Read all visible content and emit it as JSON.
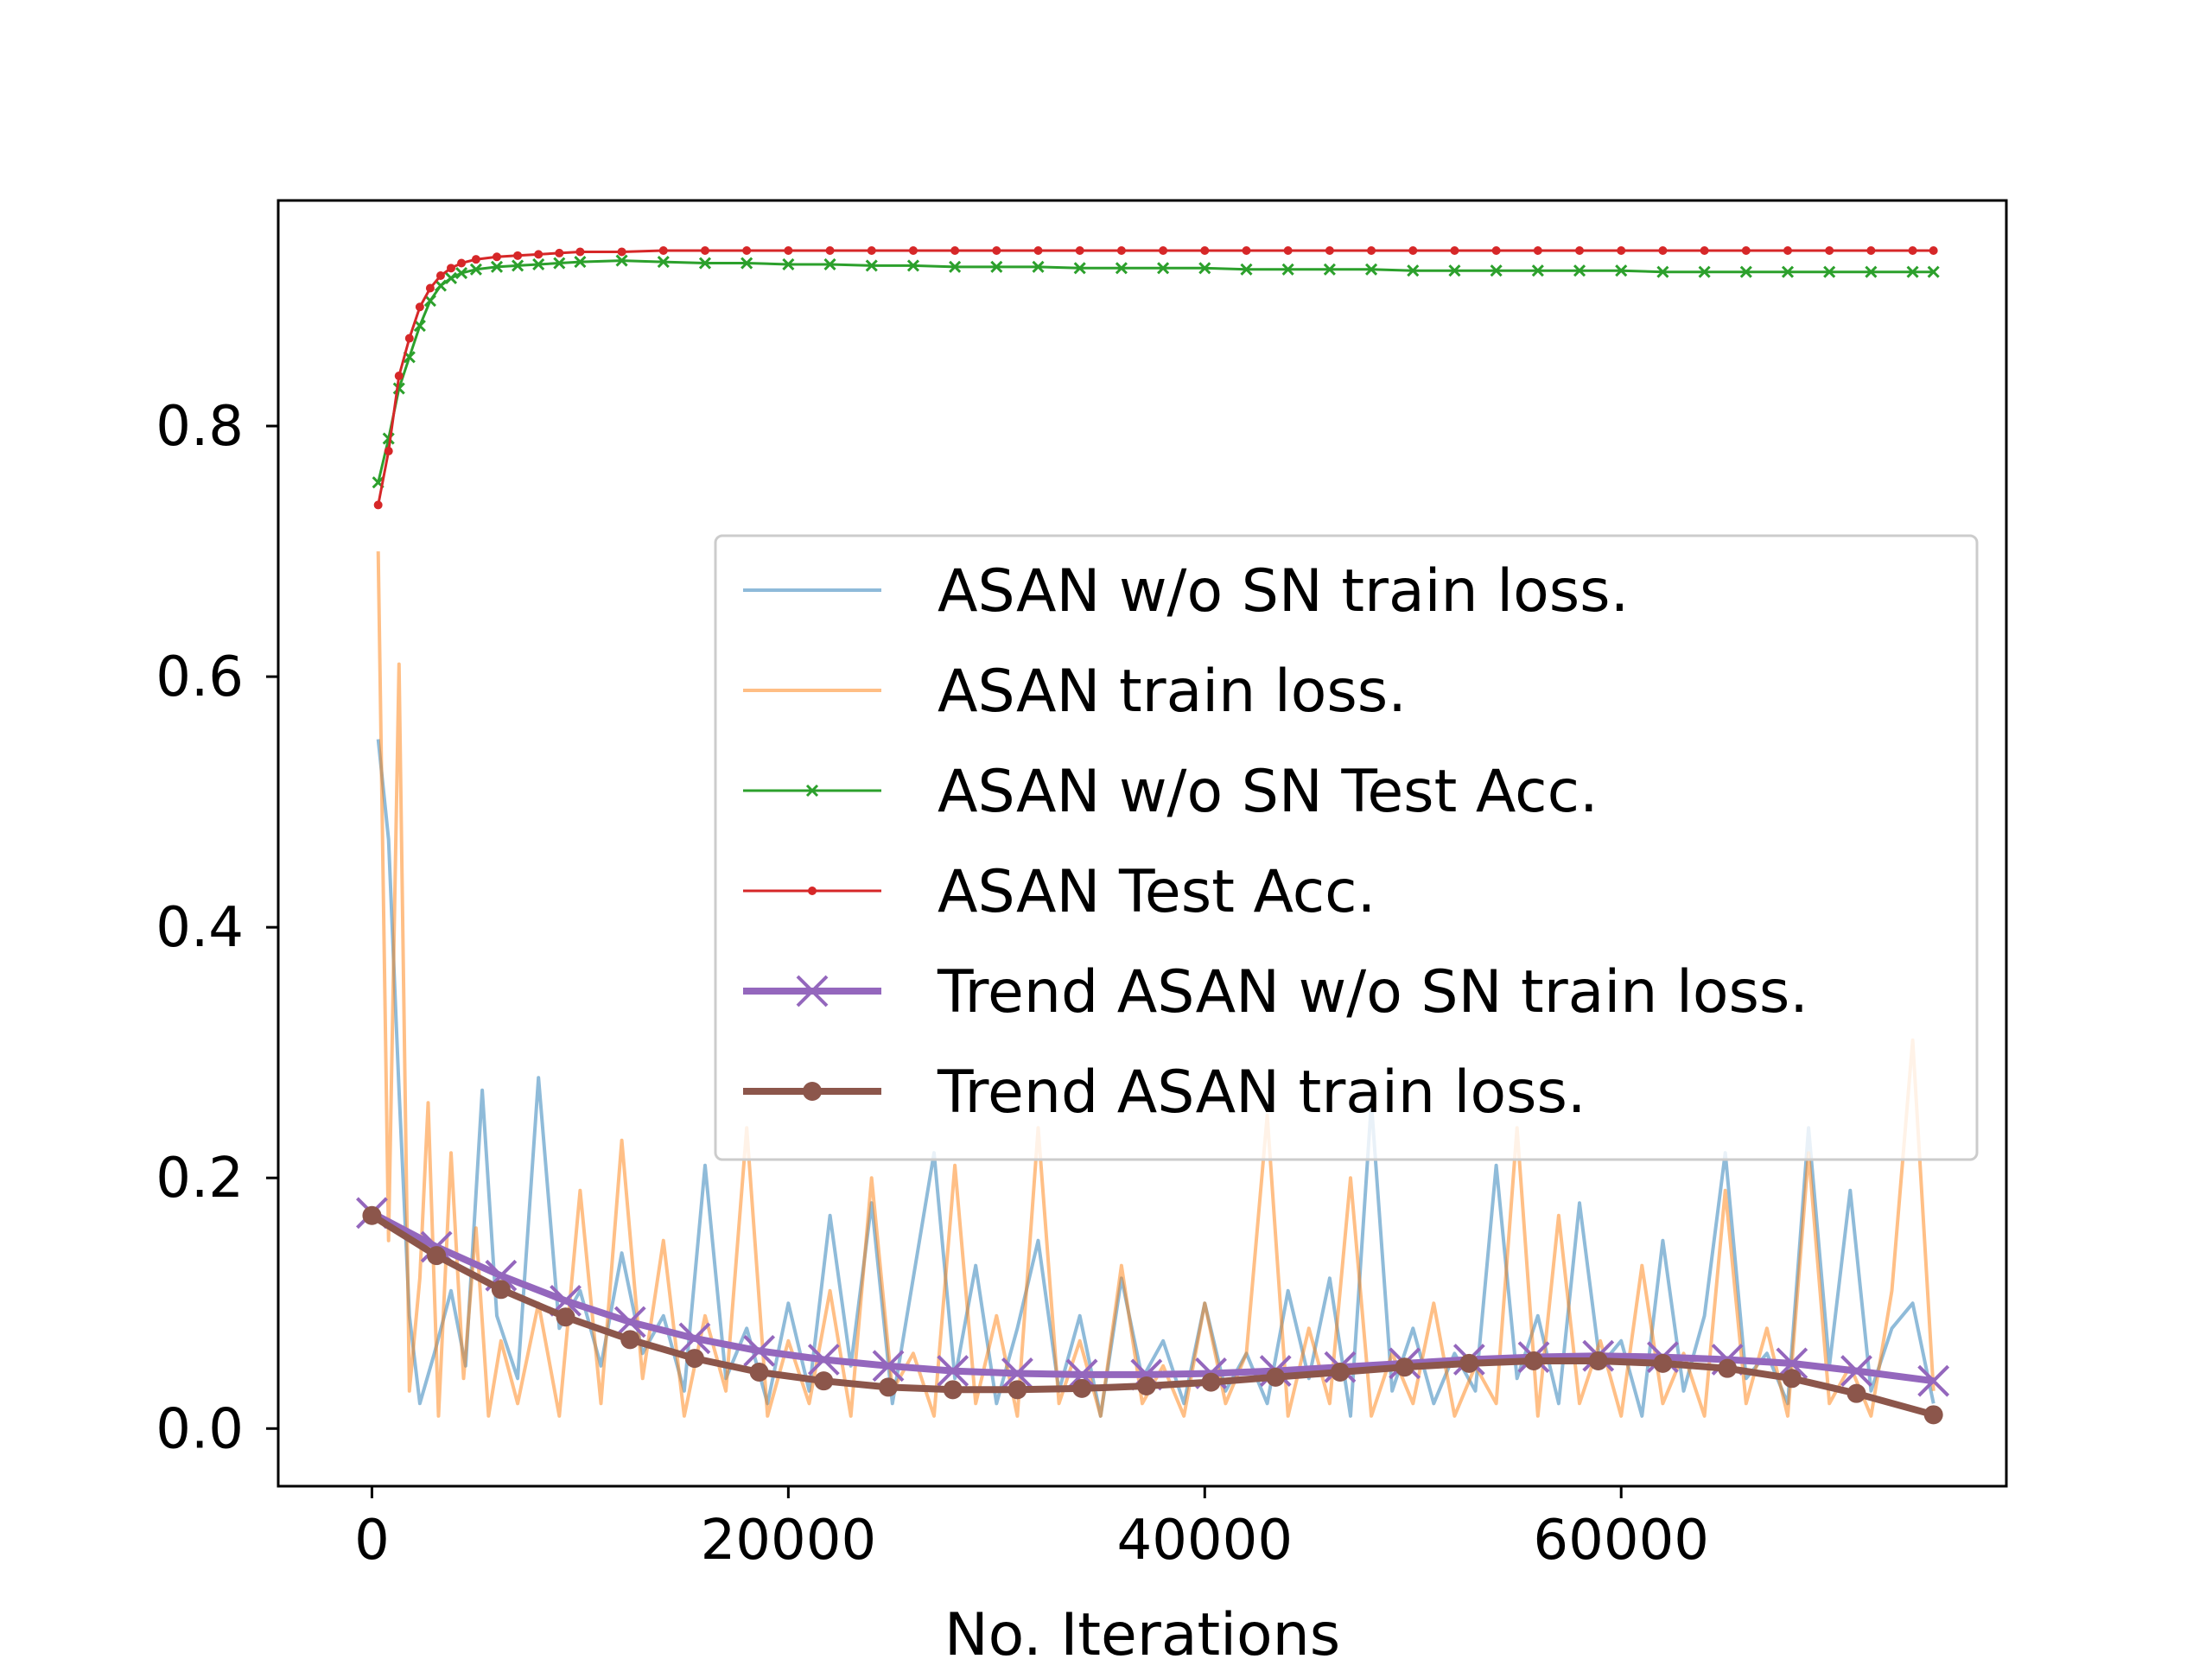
{
  "chart_data": {
    "type": "line",
    "title": "",
    "xlabel": "No. Iterations",
    "ylabel": "",
    "xlim": [
      -4500,
      78500
    ],
    "ylim": [
      -0.046,
      0.98
    ],
    "x_ticks": [
      {
        "value": 0,
        "label": "0"
      },
      {
        "value": 20000,
        "label": "20000"
      },
      {
        "value": 40000,
        "label": "40000"
      },
      {
        "value": 60000,
        "label": "60000"
      }
    ],
    "y_ticks": [
      {
        "value": 0.0,
        "label": "0.0"
      },
      {
        "value": 0.2,
        "label": "0.2"
      },
      {
        "value": 0.4,
        "label": "0.4"
      },
      {
        "value": 0.6,
        "label": "0.6"
      },
      {
        "value": 0.8,
        "label": "0.8"
      }
    ],
    "grid": false,
    "legend_position": "center-right",
    "series": [
      {
        "name": "ASAN w/o SN train loss.",
        "color": "#1f77b4",
        "alpha": 0.5,
        "style": "line",
        "x": [
          300,
          800,
          1300,
          1800,
          2300,
          3000,
          3800,
          4500,
          5300,
          6000,
          7000,
          8000,
          9000,
          10000,
          11000,
          12000,
          13000,
          14000,
          15000,
          16000,
          17000,
          18000,
          19000,
          20000,
          21000,
          22000,
          23000,
          24000,
          25000,
          26000,
          27000,
          28000,
          29000,
          30000,
          31000,
          32000,
          33000,
          34000,
          35000,
          36000,
          37000,
          38000,
          39000,
          40000,
          41000,
          42000,
          43000,
          44000,
          45000,
          46000,
          47000,
          48000,
          49000,
          50000,
          51000,
          52000,
          53000,
          54000,
          55000,
          56000,
          57000,
          58000,
          59000,
          60000,
          61000,
          62000,
          63000,
          64000,
          65000,
          66000,
          67000,
          68000,
          69000,
          70000,
          71000,
          72000,
          73000,
          74000,
          75000
        ],
        "y": [
          0.55,
          0.47,
          0.27,
          0.09,
          0.02,
          0.06,
          0.11,
          0.05,
          0.27,
          0.09,
          0.04,
          0.28,
          0.08,
          0.11,
          0.05,
          0.14,
          0.06,
          0.09,
          0.03,
          0.21,
          0.04,
          0.08,
          0.02,
          0.1,
          0.03,
          0.17,
          0.05,
          0.18,
          0.02,
          0.12,
          0.22,
          0.04,
          0.13,
          0.02,
          0.08,
          0.15,
          0.03,
          0.09,
          0.01,
          0.12,
          0.04,
          0.07,
          0.02,
          0.1,
          0.03,
          0.06,
          0.02,
          0.11,
          0.04,
          0.12,
          0.01,
          0.26,
          0.03,
          0.08,
          0.02,
          0.06,
          0.03,
          0.21,
          0.04,
          0.09,
          0.02,
          0.18,
          0.05,
          0.07,
          0.01,
          0.15,
          0.03,
          0.09,
          0.22,
          0.04,
          0.06,
          0.02,
          0.24,
          0.05,
          0.19,
          0.03,
          0.08,
          0.1,
          0.02
        ]
      },
      {
        "name": "ASAN train loss.",
        "color": "#ff7f0e",
        "alpha": 0.5,
        "style": "line",
        "x": [
          300,
          800,
          1300,
          1800,
          2300,
          2700,
          3200,
          3800,
          4400,
          5000,
          5600,
          6200,
          7000,
          8000,
          9000,
          10000,
          11000,
          12000,
          13000,
          14000,
          15000,
          16000,
          17000,
          18000,
          19000,
          20000,
          21000,
          22000,
          23000,
          24000,
          25000,
          26000,
          27000,
          28000,
          29000,
          30000,
          31000,
          32000,
          33000,
          34000,
          35000,
          36000,
          37000,
          38000,
          39000,
          40000,
          41000,
          42000,
          43000,
          44000,
          45000,
          46000,
          47000,
          48000,
          49000,
          50000,
          51000,
          52000,
          53000,
          54000,
          55000,
          56000,
          57000,
          58000,
          59000,
          60000,
          61000,
          62000,
          63000,
          64000,
          65000,
          66000,
          67000,
          68000,
          69000,
          70000,
          71000,
          72000,
          73000,
          74000,
          75000
        ],
        "y": [
          0.7,
          0.15,
          0.61,
          0.03,
          0.12,
          0.26,
          0.01,
          0.22,
          0.04,
          0.16,
          0.01,
          0.07,
          0.02,
          0.1,
          0.01,
          0.19,
          0.02,
          0.23,
          0.04,
          0.15,
          0.01,
          0.09,
          0.03,
          0.24,
          0.01,
          0.07,
          0.02,
          0.11,
          0.01,
          0.2,
          0.03,
          0.06,
          0.01,
          0.21,
          0.02,
          0.09,
          0.01,
          0.24,
          0.02,
          0.07,
          0.01,
          0.13,
          0.02,
          0.05,
          0.01,
          0.1,
          0.02,
          0.06,
          0.25,
          0.01,
          0.08,
          0.02,
          0.2,
          0.01,
          0.06,
          0.02,
          0.1,
          0.01,
          0.05,
          0.02,
          0.24,
          0.01,
          0.17,
          0.02,
          0.07,
          0.01,
          0.13,
          0.02,
          0.06,
          0.01,
          0.19,
          0.02,
          0.08,
          0.01,
          0.22,
          0.02,
          0.05,
          0.01,
          0.11,
          0.31,
          0.03
        ]
      },
      {
        "name": "ASAN w/o SN Test Acc.",
        "color": "#2ca02c",
        "alpha": 1,
        "style": "line-x-small",
        "x": [
          300,
          800,
          1300,
          1800,
          2300,
          2800,
          3300,
          3800,
          4300,
          5000,
          6000,
          7000,
          8000,
          9000,
          10000,
          12000,
          14000,
          16000,
          18000,
          20000,
          22000,
          24000,
          26000,
          28000,
          30000,
          32000,
          34000,
          36000,
          38000,
          40000,
          42000,
          44000,
          46000,
          48000,
          50000,
          52000,
          54000,
          56000,
          58000,
          60000,
          62000,
          64000,
          66000,
          68000,
          70000,
          72000,
          74000,
          75000
        ],
        "y": [
          0.755,
          0.79,
          0.83,
          0.855,
          0.88,
          0.9,
          0.912,
          0.918,
          0.922,
          0.925,
          0.927,
          0.928,
          0.929,
          0.93,
          0.931,
          0.932,
          0.931,
          0.93,
          0.93,
          0.929,
          0.929,
          0.928,
          0.928,
          0.927,
          0.927,
          0.927,
          0.926,
          0.926,
          0.926,
          0.926,
          0.925,
          0.925,
          0.925,
          0.925,
          0.924,
          0.924,
          0.924,
          0.924,
          0.924,
          0.924,
          0.923,
          0.923,
          0.923,
          0.923,
          0.923,
          0.923,
          0.923,
          0.923
        ]
      },
      {
        "name": "ASAN Test Acc.",
        "color": "#d62728",
        "alpha": 1,
        "style": "line-dot-small",
        "x": [
          300,
          800,
          1300,
          1800,
          2300,
          2800,
          3300,
          3800,
          4300,
          5000,
          6000,
          7000,
          8000,
          9000,
          10000,
          12000,
          14000,
          16000,
          18000,
          20000,
          22000,
          24000,
          26000,
          28000,
          30000,
          32000,
          34000,
          36000,
          38000,
          40000,
          42000,
          44000,
          46000,
          48000,
          50000,
          52000,
          54000,
          56000,
          58000,
          60000,
          62000,
          64000,
          66000,
          68000,
          70000,
          72000,
          74000,
          75000
        ],
        "y": [
          0.737,
          0.78,
          0.84,
          0.87,
          0.895,
          0.91,
          0.92,
          0.926,
          0.93,
          0.933,
          0.935,
          0.936,
          0.937,
          0.938,
          0.939,
          0.939,
          0.94,
          0.94,
          0.94,
          0.94,
          0.94,
          0.94,
          0.94,
          0.94,
          0.94,
          0.94,
          0.94,
          0.94,
          0.94,
          0.94,
          0.94,
          0.94,
          0.94,
          0.94,
          0.94,
          0.94,
          0.94,
          0.94,
          0.94,
          0.94,
          0.94,
          0.94,
          0.94,
          0.94,
          0.94,
          0.94,
          0.94,
          0.94
        ]
      },
      {
        "name": "Trend ASAN w/o SN train loss.",
        "color": "#9467bd",
        "alpha": 1,
        "style": "line-x-large",
        "x": [
          0,
          3100,
          6200,
          9300,
          12400,
          15500,
          18600,
          21700,
          24800,
          27900,
          31000,
          34100,
          37200,
          40300,
          43400,
          46500,
          49600,
          52700,
          55800,
          58900,
          62000,
          65100,
          68200,
          71300,
          75000
        ],
        "y": [
          0.172,
          0.145,
          0.122,
          0.102,
          0.085,
          0.072,
          0.062,
          0.055,
          0.05,
          0.046,
          0.044,
          0.043,
          0.043,
          0.044,
          0.046,
          0.049,
          0.052,
          0.055,
          0.057,
          0.058,
          0.057,
          0.055,
          0.052,
          0.046,
          0.038
        ]
      },
      {
        "name": "Trend ASAN train loss.",
        "color": "#8c564b",
        "alpha": 1,
        "style": "line-dot-large",
        "x": [
          0,
          3100,
          6200,
          9300,
          12400,
          15500,
          18600,
          21700,
          24800,
          27900,
          31000,
          34100,
          37200,
          40300,
          43400,
          46500,
          49600,
          52700,
          55800,
          58900,
          62000,
          65100,
          68200,
          71300,
          75000
        ],
        "y": [
          0.17,
          0.138,
          0.111,
          0.089,
          0.071,
          0.056,
          0.045,
          0.038,
          0.033,
          0.031,
          0.031,
          0.032,
          0.034,
          0.037,
          0.041,
          0.045,
          0.049,
          0.052,
          0.054,
          0.054,
          0.052,
          0.048,
          0.04,
          0.028,
          0.011
        ]
      }
    ]
  }
}
